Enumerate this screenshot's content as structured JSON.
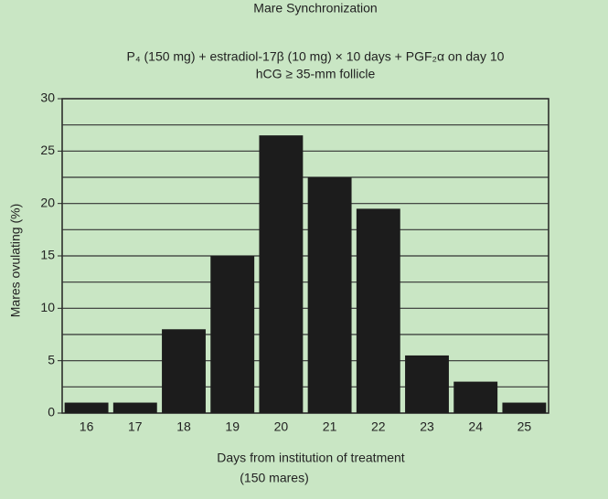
{
  "chart_data": {
    "type": "bar",
    "title": "Mare Synchronization",
    "subtitle": [
      "P₄ (150 mg) + estradiol-17β (10 mg) × 10 days + PGF₂α on day 10",
      "hCG ≥ 35-mm follicle"
    ],
    "x_label": [
      "Days from institution of treatment",
      "(150 mares)"
    ],
    "y_label": "Mares ovulating (%)",
    "categories": [
      "16",
      "17",
      "18",
      "19",
      "20",
      "21",
      "22",
      "23",
      "24",
      "25"
    ],
    "values": [
      1,
      1,
      8,
      15,
      26.5,
      22.5,
      19.5,
      5.5,
      3,
      1
    ],
    "color": "#1c1c1c",
    "ylim": [
      0,
      30
    ],
    "yticks": [
      0,
      5,
      10,
      15,
      20,
      25,
      30
    ],
    "minor_yticks": [
      2.5,
      7.5,
      12.5,
      17.5,
      22.5,
      27.5
    ],
    "grid": true
  }
}
